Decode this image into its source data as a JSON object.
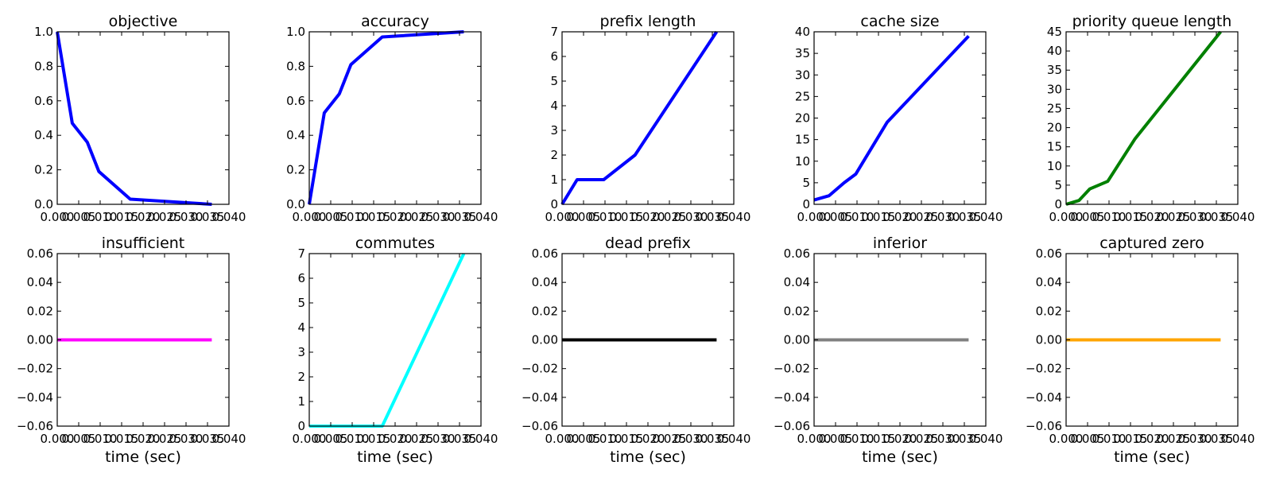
{
  "chart_data": [
    {
      "type": "line",
      "title": "objective",
      "xlabel": "",
      "xlim": [
        0,
        0.04
      ],
      "ylim": [
        0,
        1.0
      ],
      "xticks": [
        "0.000",
        "0.005",
        "0.010",
        "0.015",
        "0.020",
        "0.025",
        "0.030",
        "0.035",
        "0.040"
      ],
      "yticks": [
        "0.0",
        "0.2",
        "0.4",
        "0.6",
        "0.8",
        "1.0"
      ],
      "series": [
        {
          "color": "#0000ff",
          "x": [
            0.0,
            0.0035,
            0.007,
            0.0097,
            0.017,
            0.036
          ],
          "y": [
            1.0,
            0.47,
            0.36,
            0.19,
            0.03,
            0.0
          ]
        }
      ]
    },
    {
      "type": "line",
      "title": "accuracy",
      "xlabel": "",
      "xlim": [
        0,
        0.04
      ],
      "ylim": [
        0,
        1.0
      ],
      "xticks": [
        "0.000",
        "0.005",
        "0.010",
        "0.015",
        "0.020",
        "0.025",
        "0.030",
        "0.035",
        "0.040"
      ],
      "yticks": [
        "0.0",
        "0.2",
        "0.4",
        "0.6",
        "0.8",
        "1.0"
      ],
      "series": [
        {
          "color": "#0000ff",
          "x": [
            0.0,
            0.0035,
            0.007,
            0.0097,
            0.017,
            0.036
          ],
          "y": [
            0.0,
            0.53,
            0.64,
            0.81,
            0.97,
            1.0
          ]
        }
      ]
    },
    {
      "type": "line",
      "title": "prefix length",
      "xlabel": "",
      "xlim": [
        0,
        0.04
      ],
      "ylim": [
        0,
        7
      ],
      "xticks": [
        "0.000",
        "0.005",
        "0.010",
        "0.015",
        "0.020",
        "0.025",
        "0.030",
        "0.035",
        "0.040"
      ],
      "yticks": [
        "0",
        "1",
        "2",
        "3",
        "4",
        "5",
        "6",
        "7"
      ],
      "series": [
        {
          "color": "#0000ff",
          "x": [
            0.0,
            0.0035,
            0.0097,
            0.017,
            0.036
          ],
          "y": [
            0,
            1,
            1,
            2,
            7
          ]
        }
      ]
    },
    {
      "type": "line",
      "title": "cache size",
      "xlabel": "",
      "xlim": [
        0,
        0.04
      ],
      "ylim": [
        0,
        40
      ],
      "xticks": [
        "0.000",
        "0.005",
        "0.010",
        "0.015",
        "0.020",
        "0.025",
        "0.030",
        "0.035",
        "0.040"
      ],
      "yticks": [
        "0",
        "5",
        "10",
        "15",
        "20",
        "25",
        "30",
        "35",
        "40"
      ],
      "series": [
        {
          "color": "#0000ff",
          "x": [
            0.0,
            0.0035,
            0.007,
            0.0097,
            0.017,
            0.036
          ],
          "y": [
            1,
            2,
            5,
            7,
            19,
            39
          ]
        }
      ]
    },
    {
      "type": "line",
      "title": "priority queue length",
      "xlabel": "",
      "xlim": [
        0,
        0.04
      ],
      "ylim": [
        0,
        45
      ],
      "xticks": [
        "0.000",
        "0.005",
        "0.010",
        "0.015",
        "0.020",
        "0.025",
        "0.030",
        "0.035",
        "0.040"
      ],
      "yticks": [
        "0",
        "5",
        "10",
        "15",
        "20",
        "25",
        "30",
        "35",
        "40",
        "45"
      ],
      "series": [
        {
          "color": "#008000",
          "x": [
            0.0,
            0.003,
            0.0055,
            0.0097,
            0.016,
            0.036
          ],
          "y": [
            0,
            1,
            4,
            6,
            17,
            45
          ]
        }
      ]
    },
    {
      "type": "line",
      "title": "insufficient",
      "xlabel": "time (sec)",
      "xlim": [
        0,
        0.04
      ],
      "ylim": [
        -0.06,
        0.06
      ],
      "xticks": [
        "0.000",
        "0.005",
        "0.010",
        "0.015",
        "0.020",
        "0.025",
        "0.030",
        "0.035",
        "0.040"
      ],
      "yticks": [
        "−0.06",
        "−0.04",
        "−0.02",
        "0.00",
        "0.02",
        "0.04",
        "0.06"
      ],
      "series": [
        {
          "color": "#ff00ff",
          "x": [
            0.0,
            0.036
          ],
          "y": [
            0,
            0
          ]
        }
      ]
    },
    {
      "type": "line",
      "title": "commutes",
      "xlabel": "time (sec)",
      "xlim": [
        0,
        0.04
      ],
      "ylim": [
        0,
        7
      ],
      "xticks": [
        "0.000",
        "0.005",
        "0.010",
        "0.015",
        "0.020",
        "0.025",
        "0.030",
        "0.035",
        "0.040"
      ],
      "yticks": [
        "0",
        "1",
        "2",
        "3",
        "4",
        "5",
        "6",
        "7"
      ],
      "series": [
        {
          "color": "#00ffff",
          "x": [
            0.0,
            0.017,
            0.036
          ],
          "y": [
            0,
            0,
            7
          ]
        }
      ]
    },
    {
      "type": "line",
      "title": "dead prefix",
      "xlabel": "time (sec)",
      "xlim": [
        0,
        0.04
      ],
      "ylim": [
        -0.06,
        0.06
      ],
      "xticks": [
        "0.000",
        "0.005",
        "0.010",
        "0.015",
        "0.020",
        "0.025",
        "0.030",
        "0.035",
        "0.040"
      ],
      "yticks": [
        "−0.06",
        "−0.04",
        "−0.02",
        "0.00",
        "0.02",
        "0.04",
        "0.06"
      ],
      "series": [
        {
          "color": "#000000",
          "x": [
            0.0,
            0.036
          ],
          "y": [
            0,
            0
          ]
        }
      ]
    },
    {
      "type": "line",
      "title": "inferior",
      "xlabel": "time (sec)",
      "xlim": [
        0,
        0.04
      ],
      "ylim": [
        -0.06,
        0.06
      ],
      "xticks": [
        "0.000",
        "0.005",
        "0.010",
        "0.015",
        "0.020",
        "0.025",
        "0.030",
        "0.035",
        "0.040"
      ],
      "yticks": [
        "−0.06",
        "−0.04",
        "−0.02",
        "0.00",
        "0.02",
        "0.04",
        "0.06"
      ],
      "series": [
        {
          "color": "#808080",
          "x": [
            0.0,
            0.036
          ],
          "y": [
            0,
            0
          ]
        }
      ]
    },
    {
      "type": "line",
      "title": "captured zero",
      "xlabel": "time (sec)",
      "xlim": [
        0,
        0.04
      ],
      "ylim": [
        -0.06,
        0.06
      ],
      "xticks": [
        "0.000",
        "0.005",
        "0.010",
        "0.015",
        "0.020",
        "0.025",
        "0.030",
        "0.035",
        "0.040"
      ],
      "yticks": [
        "−0.06",
        "−0.04",
        "−0.02",
        "0.00",
        "0.02",
        "0.04",
        "0.06"
      ],
      "series": [
        {
          "color": "#ffa500",
          "x": [
            0.0,
            0.036
          ],
          "y": [
            0,
            0
          ]
        }
      ]
    }
  ]
}
